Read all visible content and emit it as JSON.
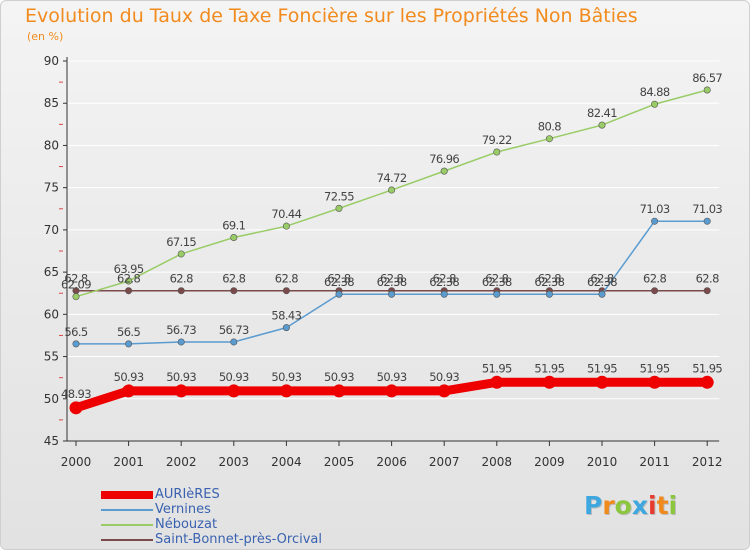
{
  "title": "Evolution du Taux de Taxe Foncière sur les Propriétés Non Bâties",
  "unit_label": "(en %)",
  "logo": {
    "text": "Proxiti",
    "colors": [
      "#3fa7e0",
      "#f08a1c",
      "#8cc63f",
      "#3fa7e0",
      "#e63b2e",
      "#f08a1c",
      "#8cc63f"
    ]
  },
  "chart_data": {
    "type": "line",
    "title": "Evolution du Taux de Taxe Foncière sur les Propriétés Non Bâties",
    "ylabel": "(en %)",
    "xlabel": "",
    "ylim": [
      45,
      90
    ],
    "yticks": [
      45,
      50,
      55,
      60,
      65,
      70,
      75,
      80,
      85,
      90
    ],
    "categories": [
      "2000",
      "2001",
      "2002",
      "2003",
      "2004",
      "2005",
      "2006",
      "2007",
      "2008",
      "2009",
      "2010",
      "2011",
      "2012"
    ],
    "grid": "horizontal",
    "legend_position": "bottom-left",
    "series": [
      {
        "name": "AURIèRES",
        "color": "#ee0000",
        "values": [
          48.93,
          50.93,
          50.93,
          50.93,
          50.93,
          50.93,
          50.93,
          50.93,
          51.95,
          51.95,
          51.95,
          51.95,
          51.95
        ],
        "labels": [
          "48.93",
          "50.93",
          "50.93",
          "50.93",
          "50.93",
          "50.93",
          "50.93",
          "50.93",
          "51.95",
          "51.95",
          "51.95",
          "51.95",
          "51.95"
        ]
      },
      {
        "name": "Vernines",
        "color": "#5a9bd0",
        "values": [
          56.5,
          56.5,
          56.73,
          56.73,
          58.43,
          62.38,
          62.38,
          62.38,
          62.38,
          62.38,
          62.38,
          71.03,
          71.03
        ],
        "labels": [
          "56.5",
          "56.5",
          "56.73",
          "56.73",
          "58.43",
          "62.38",
          "62.38",
          "62.38",
          "62.38",
          "62.38",
          "62.38",
          "71.03",
          "71.03"
        ]
      },
      {
        "name": "Nébouzat",
        "color": "#99cc66",
        "values": [
          62.09,
          63.95,
          67.15,
          69.1,
          70.44,
          72.55,
          74.72,
          76.96,
          79.22,
          80.8,
          82.41,
          84.88,
          86.57
        ],
        "labels": [
          "62.09",
          "63.95",
          "67.15",
          "69.1",
          "70.44",
          "72.55",
          "74.72",
          "76.96",
          "79.22",
          "80.8",
          "82.41",
          "84.88",
          "86.57"
        ]
      },
      {
        "name": "Saint-Bonnet-près-Orcival",
        "color": "#7a4a4a",
        "values": [
          62.8,
          62.8,
          62.8,
          62.8,
          62.8,
          62.8,
          62.8,
          62.8,
          62.8,
          62.8,
          62.8,
          62.8,
          62.8
        ],
        "labels": [
          "62.8",
          "62.8",
          "62.8",
          "62.8",
          "62.8",
          "62.8",
          "62.8",
          "62.8",
          "62.8",
          "62.8",
          "62.8",
          "62.8",
          "62.8"
        ]
      }
    ]
  }
}
